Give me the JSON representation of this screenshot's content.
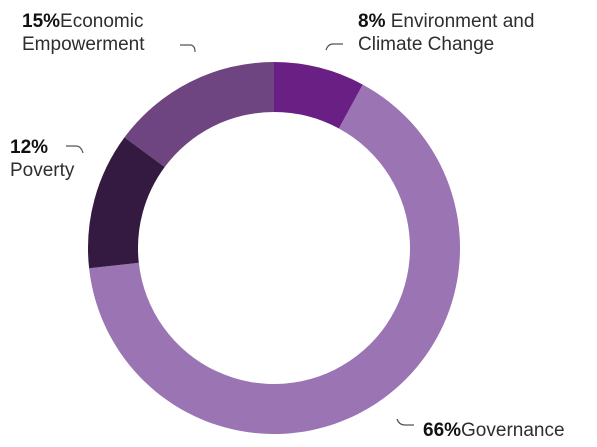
{
  "chart_data": {
    "type": "pie",
    "donut": true,
    "title": "",
    "slices": [
      {
        "label": "Environment and Climate Change",
        "pct_text": "8%",
        "value": 8,
        "color": "#6a1f84"
      },
      {
        "label": "Governance",
        "pct_text": "66%",
        "value": 66,
        "color": "#9b74b3"
      },
      {
        "label": "Poverty",
        "pct_text": "12%",
        "value": 12,
        "color": "#341a40"
      },
      {
        "label": "Economic Empowerment",
        "pct_text": "15%",
        "value": 15,
        "color": "#6e4580"
      }
    ],
    "labels_display": {
      "econ_line1_name": "Economic",
      "econ_line2_name": "Empowerment",
      "env_line1_name": "Environment and",
      "env_line2_name": "Climate Change",
      "poverty_name": "Poverty"
    },
    "leader_color": "#555555"
  }
}
